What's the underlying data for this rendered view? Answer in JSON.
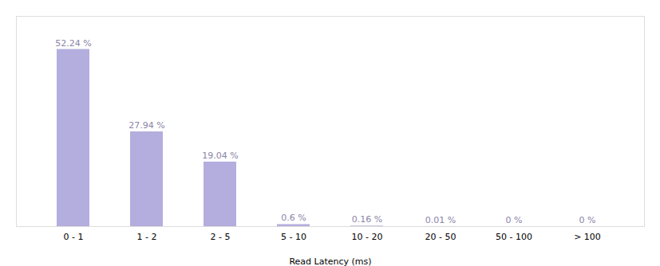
{
  "chart_data": {
    "type": "bar",
    "xlabel": "Read Latency (ms)",
    "categories": [
      "0 - 1",
      "1 - 2",
      "2 - 5",
      "5 - 10",
      "10 - 20",
      "20 - 50",
      "50 - 100",
      "> 100"
    ],
    "values": [
      52.24,
      27.94,
      19.04,
      0.6,
      0.16,
      0.01,
      0,
      0
    ],
    "value_labels": [
      "52.24 %",
      "27.94 %",
      "19.04 %",
      "0.6 %",
      "0.16 %",
      "0.01 %",
      "0 %",
      "0 %"
    ],
    "color": "#b3aedd",
    "ylim": [
      0,
      62
    ],
    "grid": false,
    "data_labels": true,
    "tick_labels": "x"
  }
}
